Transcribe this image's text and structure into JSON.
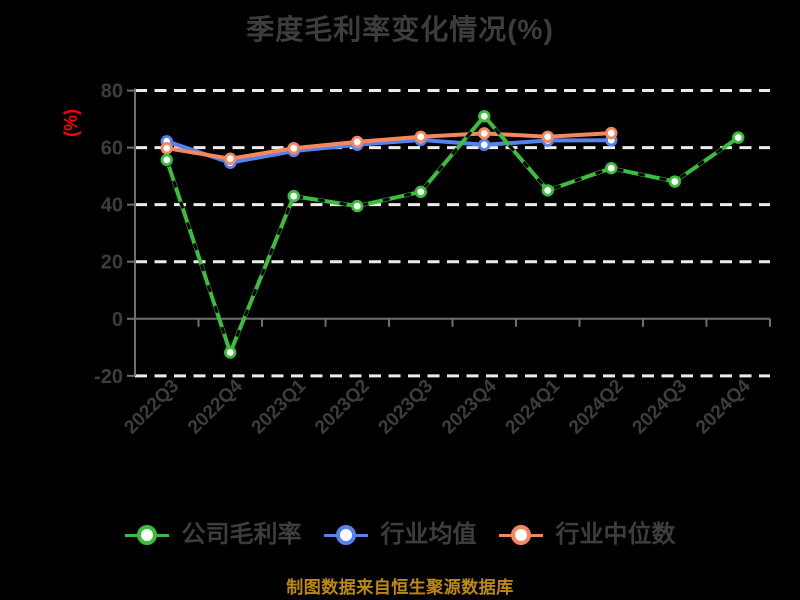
{
  "header": {
    "title": "季度毛利率变化情况(%)"
  },
  "y_axis": {
    "unit_label": "(%)",
    "unit_color": "#ff0000",
    "tick_values": [
      80,
      60,
      40,
      20,
      0,
      -20
    ]
  },
  "source_note": {
    "text": "制图数据来自恒生聚源数据库",
    "color": "#bd8a10"
  },
  "colors": {
    "background": "#000000",
    "label_text": "#3d3d3d",
    "grid": "#ececec",
    "axis": "#6f6f6f",
    "marker_fill": "#ffffff"
  },
  "chart_data": {
    "type": "line",
    "title": "季度毛利率变化情况(%)",
    "categories": [
      "2022Q3",
      "2022Q4",
      "2023Q1",
      "2023Q2",
      "2023Q3",
      "2023Q4",
      "2024Q1",
      "2024Q2",
      "2024Q3",
      "2024Q4"
    ],
    "series": [
      {
        "name": "公司毛利率",
        "color": "#3cbe3c",
        "values": [
          55.7,
          -11.8,
          43.0,
          39.5,
          44.5,
          71.0,
          45.0,
          52.8,
          48.1,
          63.5
        ]
      },
      {
        "name": "行业均值",
        "color": "#5582eb",
        "values": [
          62.2,
          54.7,
          58.8,
          61.0,
          62.7,
          61.0,
          62.5,
          62.6,
          null,
          null
        ]
      },
      {
        "name": "行业中位数",
        "color": "#f5875f",
        "values": [
          59.8,
          56.1,
          59.8,
          62.0,
          63.8,
          65.0,
          63.8,
          65.1,
          null,
          null
        ]
      }
    ],
    "ylim": [
      -20,
      80
    ],
    "y_ticks": [
      80,
      60,
      40,
      20,
      0,
      -20
    ],
    "grid": "horizontal-dashed",
    "legend_position": "bottom",
    "x_label_rotation": 45,
    "xlabel": "",
    "ylabel": "(%)"
  },
  "legend": {
    "items": [
      {
        "label": "公司毛利率"
      },
      {
        "label": "行业均值"
      },
      {
        "label": "行业中位数"
      }
    ]
  }
}
